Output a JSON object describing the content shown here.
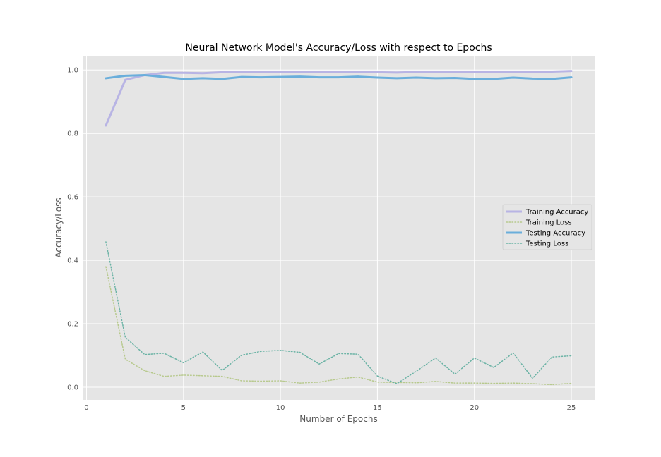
{
  "chart_data": {
    "type": "line",
    "title": "Neural Network Model's Accuracy/Loss with respect to Epochs",
    "xlabel": "Number of Epochs",
    "ylabel": "Accuracy/Loss",
    "xlim": [
      -0.2,
      26.2
    ],
    "ylim": [
      -0.04,
      1.045
    ],
    "xticks": [
      0,
      5,
      10,
      15,
      20,
      25
    ],
    "xtick_labels": [
      "0",
      "5",
      "10",
      "15",
      "20",
      "25"
    ],
    "yticks": [
      0.0,
      0.2,
      0.4,
      0.6,
      0.8,
      1.0
    ],
    "ytick_labels": [
      "0.0",
      "0.2",
      "0.4",
      "0.6",
      "0.8",
      "1.0"
    ],
    "grid": true,
    "legend_position": "center-right",
    "x": [
      1,
      2,
      3,
      4,
      5,
      6,
      7,
      8,
      9,
      10,
      11,
      12,
      13,
      14,
      15,
      16,
      17,
      18,
      19,
      20,
      21,
      22,
      23,
      24,
      25
    ],
    "series": [
      {
        "name": "Training Accuracy",
        "style": "solid",
        "color": "#b8b4e4",
        "values": [
          0.825,
          0.969,
          0.984,
          0.991,
          0.991,
          0.99,
          0.993,
          0.993,
          0.993,
          0.993,
          0.995,
          0.994,
          0.993,
          0.993,
          0.993,
          0.992,
          0.994,
          0.995,
          0.995,
          0.994,
          0.994,
          0.994,
          0.994,
          0.995,
          0.997
        ]
      },
      {
        "name": "Training Loss",
        "style": "dotted",
        "color": "#b7c98d",
        "values": [
          0.38,
          0.088,
          0.052,
          0.034,
          0.038,
          0.036,
          0.034,
          0.02,
          0.019,
          0.02,
          0.013,
          0.016,
          0.026,
          0.032,
          0.016,
          0.015,
          0.014,
          0.018,
          0.013,
          0.013,
          0.012,
          0.013,
          0.011,
          0.008,
          0.012
        ]
      },
      {
        "name": "Testing Accuracy",
        "style": "solid",
        "color": "#6aaedb",
        "values": [
          0.974,
          0.982,
          0.984,
          0.978,
          0.972,
          0.974,
          0.972,
          0.978,
          0.977,
          0.978,
          0.979,
          0.977,
          0.977,
          0.979,
          0.976,
          0.974,
          0.976,
          0.974,
          0.975,
          0.972,
          0.972,
          0.976,
          0.973,
          0.972,
          0.977
        ]
      },
      {
        "name": "Testing Loss",
        "style": "dotted",
        "color": "#6bb3a5",
        "values": [
          0.458,
          0.157,
          0.103,
          0.107,
          0.077,
          0.111,
          0.053,
          0.101,
          0.113,
          0.116,
          0.11,
          0.073,
          0.106,
          0.104,
          0.035,
          0.011,
          0.05,
          0.092,
          0.041,
          0.092,
          0.062,
          0.108,
          0.028,
          0.095,
          0.099
        ]
      }
    ]
  }
}
